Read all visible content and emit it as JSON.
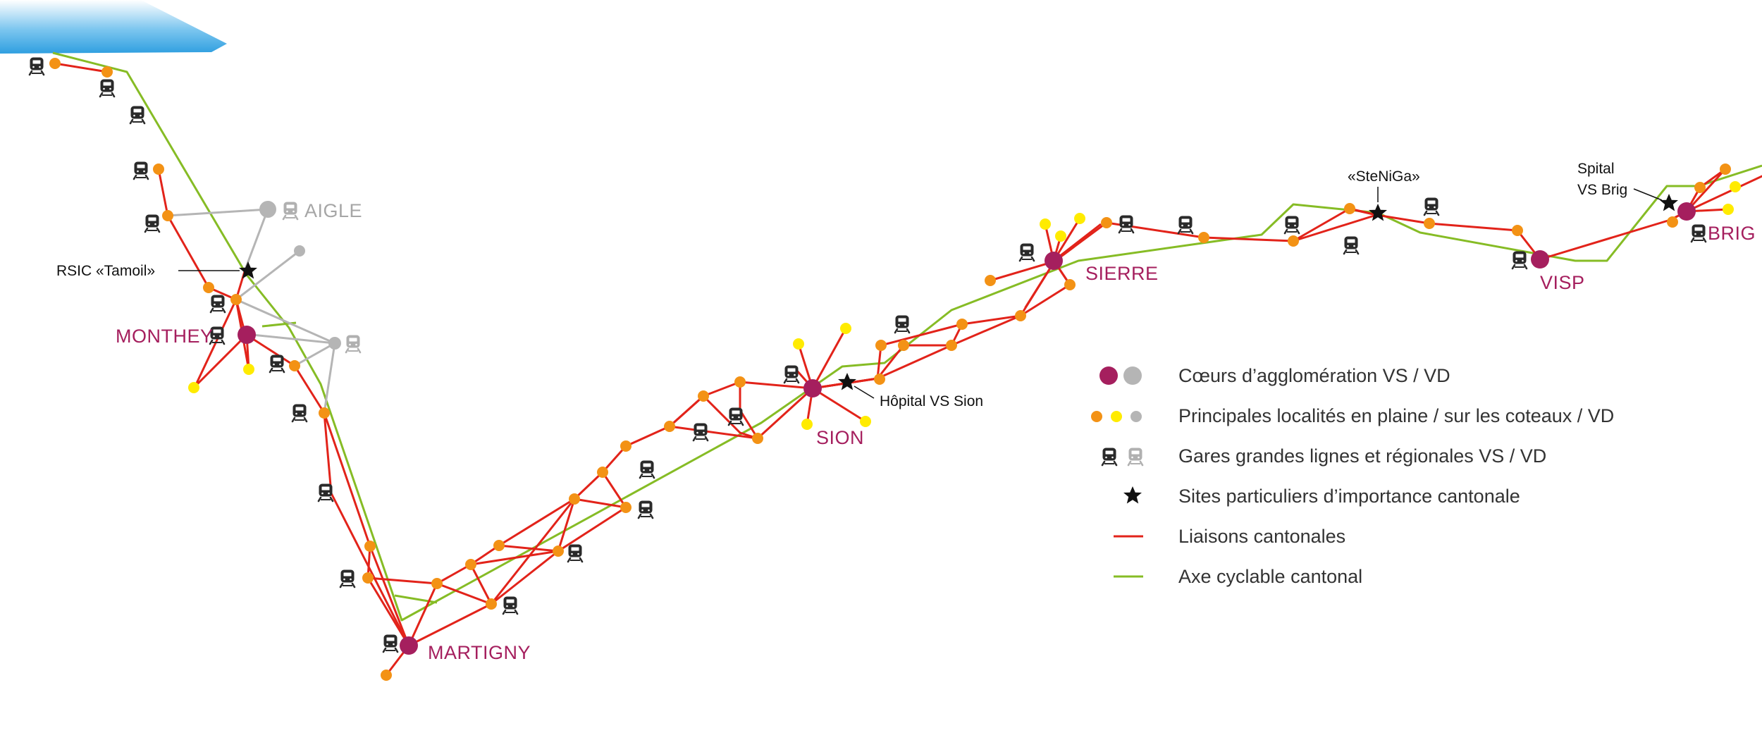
{
  "colors": {
    "vs_core": "#a51f5e",
    "vd_core": "#b5b5b5",
    "plain": "#f39215",
    "slope": "#ffeb00",
    "vd_locality": "#b5b5b5",
    "station_vs": "#2a2a2a",
    "station_vd": "#b0b0b0",
    "liaison": "#e2231a",
    "cycle": "#86bc25",
    "lake": "#2f9fe0"
  },
  "cities": {
    "aigle": "AIGLE",
    "monthey": "MONTHEY",
    "martigny": "MARTIGNY",
    "sion": "SION",
    "sierre": "SIERRE",
    "visp": "VISP",
    "brig": "BRIG"
  },
  "sites": {
    "rsic": "RSIC «Tamoil»",
    "hopital": "Hôpital VS Sion",
    "steniga": "«SteNiGa»",
    "spital_line1": "Spital",
    "spital_line2": "VS Brig"
  },
  "legend": {
    "cores": "Cœurs d’agglomération VS  / VD",
    "localities": "Principales localités en plaine / sur les coteaux / VD",
    "stations": "Gares grandes lignes et régionales VS / VD",
    "sites": "Sites particuliers d’importance cantonale",
    "liaisons": "Liaisons cantonales",
    "cycle": "Axe cyclable cantonal"
  }
}
